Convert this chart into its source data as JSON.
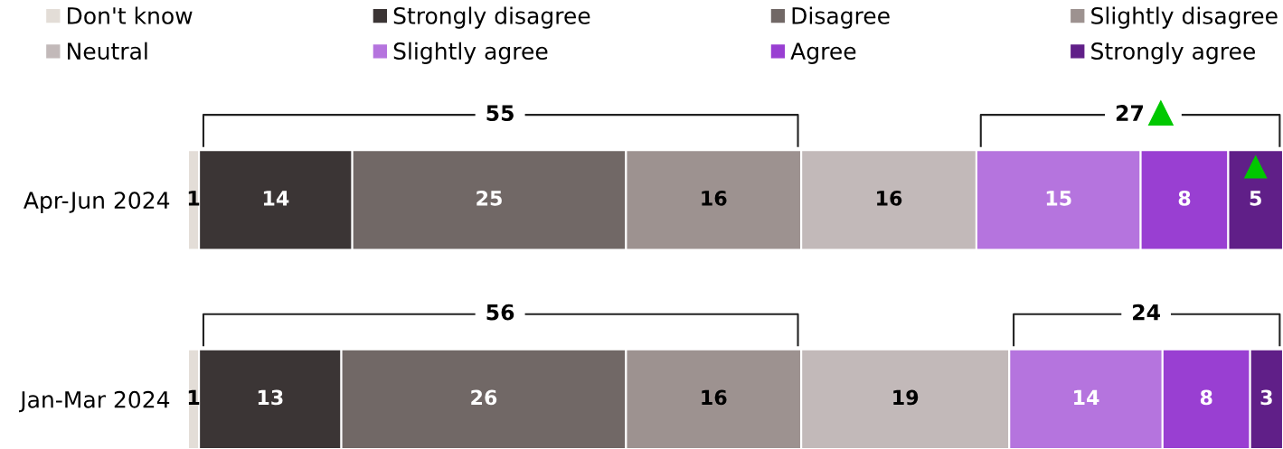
{
  "chart_data": {
    "type": "bar",
    "orientation": "horizontal",
    "stacked": true,
    "data_labels": true,
    "legend": "top",
    "tick_labels": "y",
    "xlim": [
      0,
      100
    ],
    "categories": [
      "Apr-Jun 2024",
      "Jan-Mar 2024"
    ],
    "series": [
      {
        "name": "Don't know",
        "color": "#e3ddd7",
        "values": [
          1,
          1
        ]
      },
      {
        "name": "Strongly disagree",
        "color": "#3b3535",
        "values": [
          14,
          13
        ]
      },
      {
        "name": "Disagree",
        "color": "#716866",
        "values": [
          25,
          26
        ]
      },
      {
        "name": "Slightly disagree",
        "color": "#9d9290",
        "values": [
          16,
          16
        ]
      },
      {
        "name": "Neutral",
        "color": "#c2b9b9",
        "values": [
          16,
          19
        ]
      },
      {
        "name": "Slightly agree",
        "color": "#b574de",
        "values": [
          15,
          14
        ]
      },
      {
        "name": "Agree",
        "color": "#993fd2",
        "values": [
          8,
          8
        ]
      },
      {
        "name": "Strongly agree",
        "color": "#601f88",
        "values": [
          5,
          3
        ]
      }
    ],
    "annotations": [
      "55",
      "27",
      "56",
      "24"
    ]
  }
}
